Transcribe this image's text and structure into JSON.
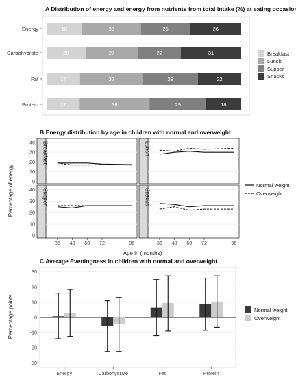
{
  "colors": {
    "breakfast": "#d3d3d3",
    "lunch": "#a9a9a9",
    "supper": "#808080",
    "snacks": "#3c3c3c",
    "normal_weight": "#3a3a3a",
    "overweight": "#cccccc"
  },
  "chart_data": [
    {
      "type": "bar",
      "orientation": "horizontal",
      "stacked": true,
      "title": "A Distribution of energy and energy from nutrients from total intake (%) at eating occasions",
      "categories": [
        "Energy",
        "Carbohydrate",
        "Fat",
        "Protein"
      ],
      "series": [
        {
          "name": "Breakfast",
          "values": [
            18,
            20,
            17,
            17
          ]
        },
        {
          "name": "Lunch",
          "values": [
            30,
            27,
            32,
            36
          ]
        },
        {
          "name": "Supper",
          "values": [
            25,
            22,
            28,
            29
          ]
        },
        {
          "name": "Snacks",
          "values": [
            26,
            31,
            22,
            18
          ]
        }
      ],
      "legend": "right"
    },
    {
      "type": "line",
      "title": "B Energy distribution by age in children with normal and overweight",
      "xlabel": "Age in (months)",
      "ylabel": "Percentage of energy",
      "x_ticks": [
        36,
        48,
        60,
        72,
        96
      ],
      "y_ticks": [
        0,
        10,
        20,
        30,
        40
      ],
      "xlim": [
        30,
        98
      ],
      "ylim": [
        0,
        42
      ],
      "legend": "right",
      "panels": [
        {
          "name": "Breakfast",
          "x": [
            36,
            48,
            60,
            72,
            96
          ],
          "series": [
            {
              "name": "Normal weight",
              "values": [
                19,
                19,
                19,
                18,
                17.5
              ]
            },
            {
              "name": "Overweight",
              "values": [
                19,
                17,
                17,
                17.5,
                17
              ]
            }
          ]
        },
        {
          "name": "Lunch",
          "x": [
            36,
            48,
            60,
            72,
            96
          ],
          "series": [
            {
              "name": "Normal weight",
              "values": [
                28,
                30,
                31,
                30,
                30
              ]
            },
            {
              "name": "Overweight",
              "values": [
                32,
                31,
                34,
                33,
                34
              ]
            }
          ]
        },
        {
          "name": "Supper",
          "x": [
            36,
            48,
            60,
            72,
            96
          ],
          "series": [
            {
              "name": "Normal weight",
              "values": [
                25,
                24,
                26,
                26,
                26
              ]
            },
            {
              "name": "Overweight",
              "values": [
                26,
                26,
                26,
                26,
                26
              ]
            }
          ]
        },
        {
          "name": "Snacks",
          "x": [
            36,
            48,
            60,
            72,
            96
          ],
          "series": [
            {
              "name": "Normal weight",
              "values": [
                28,
                27,
                25,
                26,
                26
              ]
            },
            {
              "name": "Overweight",
              "values": [
                23,
                25,
                22,
                23,
                23
              ]
            }
          ]
        }
      ]
    },
    {
      "type": "bar",
      "title": "C Average Eveningness in children with normal and overweight",
      "ylabel": "Percentage points",
      "categories": [
        "Energy",
        "Carbohydrate",
        "Fat",
        "Protein"
      ],
      "y_ticks": [
        -30,
        -20,
        -10,
        0,
        10,
        20,
        30
      ],
      "ylim": [
        -33,
        33
      ],
      "legend": "right",
      "series": [
        {
          "name": "Normal weight",
          "values": [
            0.8,
            -5.5,
            6.5,
            8.8
          ],
          "ci_low": [
            -14,
            -22.5,
            -12,
            -8.5
          ],
          "ci_high": [
            16,
            11,
            25,
            26
          ]
        },
        {
          "name": "Overweight",
          "values": [
            3,
            -4.5,
            9.5,
            10.5
          ],
          "ci_low": [
            -12.5,
            -22.5,
            -9,
            -6.5
          ],
          "ci_high": [
            18.5,
            13,
            27.5,
            27.5
          ]
        }
      ]
    }
  ]
}
